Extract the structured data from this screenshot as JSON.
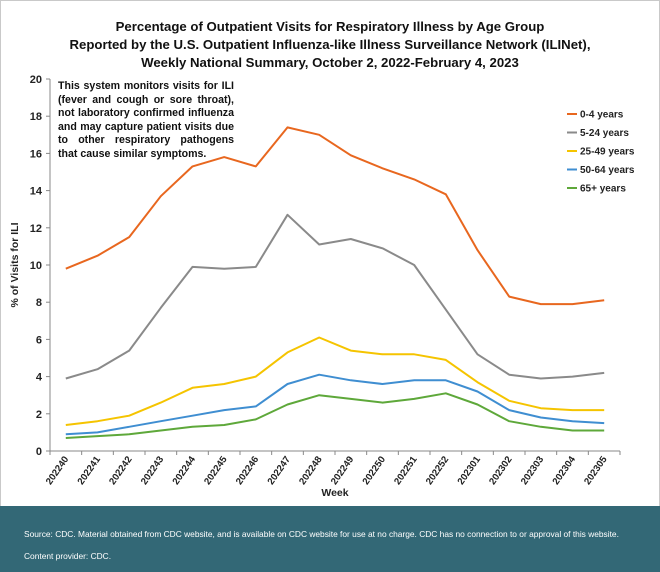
{
  "chart_data": {
    "type": "line",
    "title": [
      "Percentage of Outpatient Visits for Respiratory Illness by Age Group",
      "Reported by the U.S. Outpatient Influenza-like Illness Surveillance Network (ILINet),",
      "Weekly National Summary, October 2, 2022-February 4, 2023"
    ],
    "annotation": "This system monitors visits for ILI (fever and cough or sore throat), not laboratory confirmed influenza and may capture patient visits due to other respiratory pathogens that cause similar symptoms.",
    "xlabel": "Week",
    "ylabel": "% of Visits for ILI",
    "ylim": [
      0,
      20
    ],
    "yticks": [
      0,
      2,
      4,
      6,
      8,
      10,
      12,
      14,
      16,
      18,
      20
    ],
    "grid": false,
    "legend_position": "top-right",
    "categories": [
      "202240",
      "202241",
      "202242",
      "202243",
      "202244",
      "202245",
      "202246",
      "202247",
      "202248",
      "202249",
      "202250",
      "202251",
      "202252",
      "202301",
      "202302",
      "202303",
      "202304",
      "202305"
    ],
    "series": [
      {
        "name": "0-4 years",
        "color": "#e8671f",
        "values": [
          9.8,
          10.5,
          11.5,
          13.7,
          15.3,
          15.8,
          15.3,
          17.4,
          17.0,
          15.9,
          15.2,
          14.6,
          13.8,
          10.8,
          8.3,
          7.9,
          7.9,
          8.1
        ]
      },
      {
        "name": "5-24 years",
        "color": "#8a8a8a",
        "values": [
          3.9,
          4.4,
          5.4,
          7.7,
          9.9,
          9.8,
          9.9,
          12.7,
          11.1,
          11.4,
          10.9,
          10.0,
          7.6,
          5.2,
          4.1,
          3.9,
          4.0,
          4.2
        ]
      },
      {
        "name": "25-49 years",
        "color": "#f5c400",
        "values": [
          1.4,
          1.6,
          1.9,
          2.6,
          3.4,
          3.6,
          4.0,
          5.3,
          6.1,
          5.4,
          5.2,
          5.2,
          4.9,
          3.7,
          2.7,
          2.3,
          2.2,
          2.2
        ]
      },
      {
        "name": "50-64 years",
        "color": "#3f8ed1",
        "values": [
          0.9,
          1.0,
          1.3,
          1.6,
          1.9,
          2.2,
          2.4,
          3.6,
          4.1,
          3.8,
          3.6,
          3.8,
          3.8,
          3.2,
          2.2,
          1.8,
          1.6,
          1.5
        ]
      },
      {
        "name": "65+ years",
        "color": "#5ea83a",
        "values": [
          0.7,
          0.8,
          0.9,
          1.1,
          1.3,
          1.4,
          1.7,
          2.5,
          3.0,
          2.8,
          2.6,
          2.8,
          3.1,
          2.5,
          1.6,
          1.3,
          1.1,
          1.1
        ]
      }
    ]
  },
  "footer": {
    "source": "Source: CDC. Material obtained from CDC website, and is available on CDC website for use at no charge. CDC has no connection to or approval of this website.",
    "provider": "Content provider: CDC."
  }
}
